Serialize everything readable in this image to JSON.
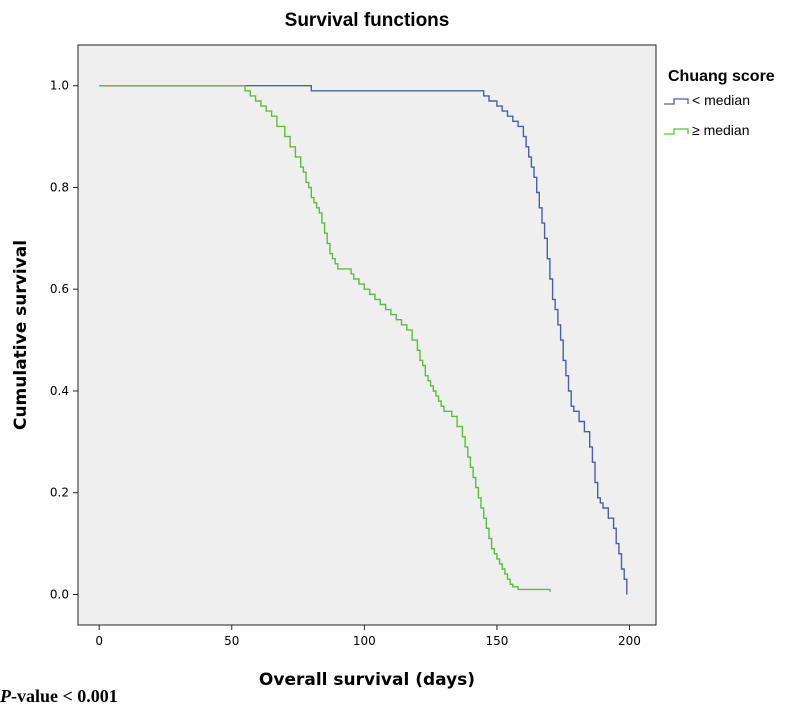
{
  "chart_data": {
    "type": "line",
    "title": "Survival functions",
    "xlabel": "Overall survival (days)",
    "ylabel": "Cumulative survival",
    "xlim": [
      -8,
      210
    ],
    "ylim": [
      -0.06,
      1.08
    ],
    "xticks": [
      0,
      50,
      100,
      150,
      200
    ],
    "yticks": [
      0.0,
      0.2,
      0.4,
      0.6,
      0.8,
      1.0
    ],
    "xtick_labels": [
      "0",
      "50",
      "100",
      "150",
      "200"
    ],
    "ytick_labels": [
      "0.0",
      "0.2",
      "0.4",
      "0.6",
      "0.8",
      "1.0"
    ],
    "grid": false,
    "legend": {
      "title": "Chuang score",
      "position": "right"
    },
    "step": true,
    "series": [
      {
        "name": "< median",
        "color": "#4a5fa8",
        "x": [
          0,
          80,
          145,
          147,
          150,
          152,
          154,
          156,
          158,
          160,
          161,
          162,
          163,
          164,
          165,
          166,
          167,
          168,
          169,
          170,
          171,
          172,
          173,
          174,
          175,
          176,
          177,
          178,
          179,
          181,
          183,
          185,
          186,
          187,
          188,
          189,
          190,
          192,
          194,
          195,
          196,
          197,
          198,
          199
        ],
        "y": [
          1.0,
          0.99,
          0.98,
          0.97,
          0.96,
          0.95,
          0.94,
          0.93,
          0.92,
          0.9,
          0.88,
          0.86,
          0.84,
          0.82,
          0.79,
          0.76,
          0.73,
          0.7,
          0.66,
          0.62,
          0.58,
          0.56,
          0.53,
          0.5,
          0.46,
          0.43,
          0.4,
          0.37,
          0.36,
          0.34,
          0.32,
          0.29,
          0.26,
          0.22,
          0.19,
          0.18,
          0.17,
          0.15,
          0.13,
          0.1,
          0.08,
          0.05,
          0.03,
          0.0
        ]
      },
      {
        "name": "≥ median",
        "color": "#5bbf3a",
        "x": [
          0,
          55,
          57,
          59,
          61,
          63,
          65,
          67,
          70,
          72,
          74,
          76,
          77,
          78,
          79,
          80,
          81,
          82,
          83,
          84,
          85,
          86,
          87,
          88,
          89,
          90,
          95,
          96,
          98,
          100,
          102,
          104,
          106,
          108,
          110,
          112,
          114,
          116,
          118,
          120,
          121,
          122,
          123,
          124,
          125,
          126,
          127,
          128,
          129,
          130,
          133,
          135,
          137,
          138,
          139,
          140,
          141,
          142,
          143,
          144,
          145,
          146,
          147,
          148,
          149,
          150,
          151,
          152,
          153,
          154,
          155,
          156,
          158,
          160,
          162,
          170
        ],
        "y": [
          1.0,
          0.99,
          0.98,
          0.97,
          0.96,
          0.95,
          0.94,
          0.92,
          0.9,
          0.88,
          0.86,
          0.84,
          0.83,
          0.81,
          0.8,
          0.78,
          0.77,
          0.76,
          0.75,
          0.73,
          0.71,
          0.69,
          0.67,
          0.66,
          0.65,
          0.64,
          0.63,
          0.62,
          0.61,
          0.6,
          0.59,
          0.58,
          0.57,
          0.56,
          0.55,
          0.54,
          0.53,
          0.52,
          0.5,
          0.48,
          0.46,
          0.45,
          0.43,
          0.42,
          0.41,
          0.4,
          0.39,
          0.38,
          0.37,
          0.36,
          0.35,
          0.33,
          0.31,
          0.29,
          0.27,
          0.25,
          0.23,
          0.21,
          0.19,
          0.17,
          0.15,
          0.13,
          0.11,
          0.09,
          0.08,
          0.07,
          0.06,
          0.05,
          0.04,
          0.03,
          0.02,
          0.015,
          0.01,
          0.01,
          0.01,
          0.005
        ]
      }
    ]
  },
  "annotation": {
    "p_letter": "P",
    "p_rest": "-value < 0.001"
  }
}
